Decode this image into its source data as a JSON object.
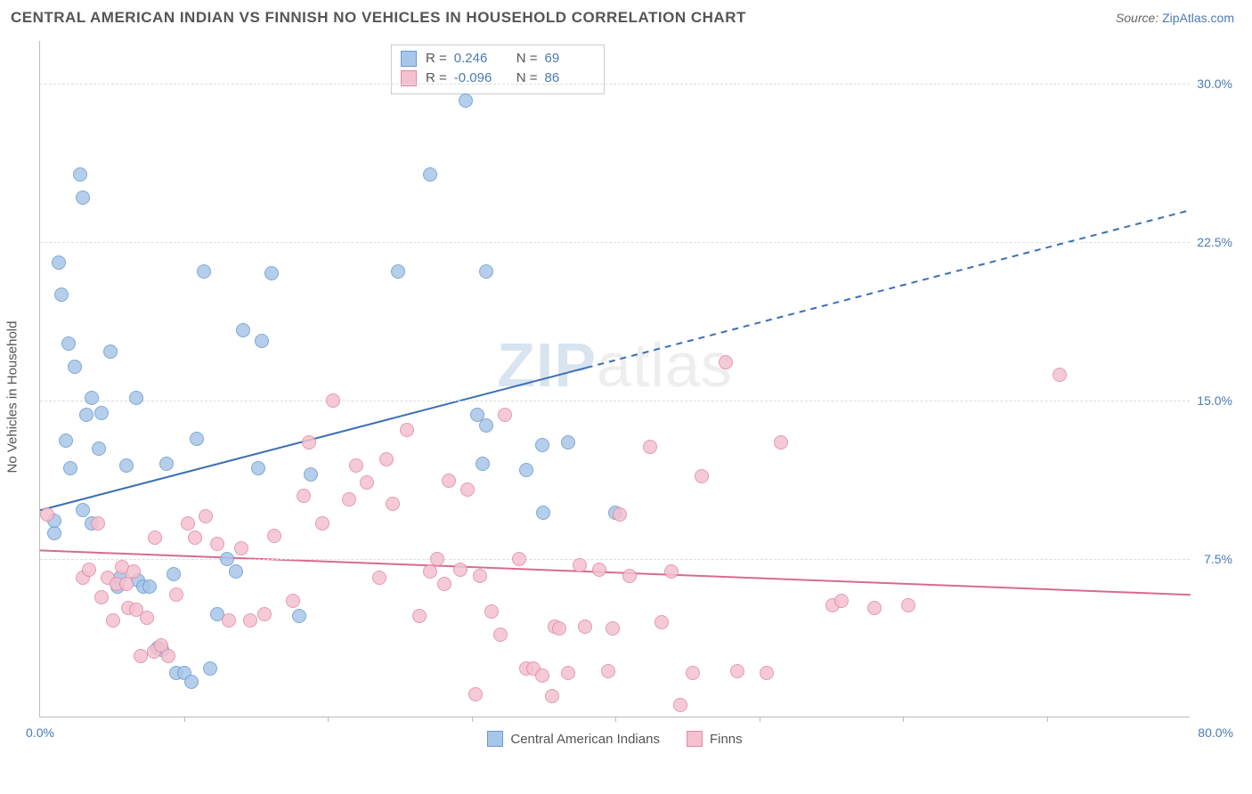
{
  "header": {
    "title": "CENTRAL AMERICAN INDIAN VS FINNISH NO VEHICLES IN HOUSEHOLD CORRELATION CHART",
    "source_label": "Source: ",
    "source_link": "ZipAtlas.com"
  },
  "chart": {
    "type": "scatter",
    "ylabel": "No Vehicles in Household",
    "xlim": [
      0,
      80
    ],
    "ylim": [
      0,
      32
    ],
    "x_tick_labels": [
      "0.0%",
      "80.0%"
    ],
    "x_tick_positions": [
      0,
      80
    ],
    "x_minor_ticks": [
      10,
      20,
      30,
      40,
      50,
      60,
      70
    ],
    "y_tick_labels": [
      "7.5%",
      "15.0%",
      "22.5%",
      "30.0%"
    ],
    "y_tick_positions": [
      7.5,
      15.0,
      22.5,
      30.0
    ],
    "background_color": "#ffffff",
    "grid_color": "#dddddd",
    "axis_color": "#bbbbbb",
    "tick_label_color": "#4a7ab8",
    "label_fontsize": 15,
    "tick_fontsize": 14,
    "title_fontsize": 17,
    "title_color": "#555555",
    "watermark": "ZIPatlas",
    "marker_radius": 8,
    "marker_border_width": 1,
    "marker_fill_opacity": 0.35,
    "series": [
      {
        "name": "Central American Indians",
        "fill": "#a8c6e8",
        "stroke": "#6a9bd1",
        "r_value": "0.246",
        "n_value": "69",
        "trend": {
          "x1": 0,
          "y1": 9.8,
          "x2": 80,
          "y2": 24.0,
          "solid_until_x": 38,
          "color": "#3b6fb5",
          "width": 2
        },
        "points": [
          [
            1,
            8.7
          ],
          [
            1,
            9.3
          ],
          [
            1.3,
            21.5
          ],
          [
            1.5,
            20.0
          ],
          [
            2.1,
            11.8
          ],
          [
            2.4,
            16.6
          ],
          [
            2.8,
            25.7
          ],
          [
            3.0,
            24.6
          ],
          [
            1.8,
            13.1
          ],
          [
            2.0,
            17.7
          ],
          [
            3.0,
            9.8
          ],
          [
            3.2,
            14.3
          ],
          [
            3.6,
            9.2
          ],
          [
            3.6,
            15.1
          ],
          [
            4.1,
            12.7
          ],
          [
            4.3,
            14.4
          ],
          [
            4.9,
            17.3
          ],
          [
            5.4,
            6.2
          ],
          [
            5.6,
            6.6
          ],
          [
            6.0,
            11.9
          ],
          [
            6.7,
            15.1
          ],
          [
            6.8,
            6.5
          ],
          [
            7.2,
            6.2
          ],
          [
            7.6,
            6.2
          ],
          [
            8.2,
            3.3
          ],
          [
            8.5,
            3.2
          ],
          [
            8.8,
            12.0
          ],
          [
            9.3,
            6.8
          ],
          [
            9.5,
            2.1
          ],
          [
            10.0,
            2.1
          ],
          [
            10.5,
            1.7
          ],
          [
            10.9,
            13.2
          ],
          [
            11.4,
            21.1
          ],
          [
            11.8,
            2.3
          ],
          [
            12.3,
            4.9
          ],
          [
            13.0,
            7.5
          ],
          [
            13.6,
            6.9
          ],
          [
            14.1,
            18.3
          ],
          [
            15.2,
            11.8
          ],
          [
            15.4,
            17.8
          ],
          [
            16.1,
            21.0
          ],
          [
            18.0,
            4.8
          ],
          [
            18.8,
            11.5
          ],
          [
            24.9,
            21.1
          ],
          [
            27.1,
            25.7
          ],
          [
            29.6,
            29.2
          ],
          [
            30.4,
            14.3
          ],
          [
            30.8,
            12.0
          ],
          [
            31.0,
            13.8
          ],
          [
            31.0,
            21.1
          ],
          [
            33.8,
            11.7
          ],
          [
            34.9,
            12.9
          ],
          [
            35.0,
            9.7
          ],
          [
            36.7,
            13.0
          ],
          [
            40.0,
            9.7
          ]
        ]
      },
      {
        "name": "Finns",
        "fill": "#f4c1cf",
        "stroke": "#e08aa3",
        "r_value": "-0.096",
        "n_value": "86",
        "trend": {
          "x1": 0,
          "y1": 7.9,
          "x2": 80,
          "y2": 5.8,
          "solid_until_x": 80,
          "color": "#d86a8e",
          "width": 2
        },
        "points": [
          [
            0.5,
            9.6
          ],
          [
            3.0,
            6.6
          ],
          [
            3.4,
            7.0
          ],
          [
            4.0,
            9.2
          ],
          [
            4.3,
            5.7
          ],
          [
            4.7,
            6.6
          ],
          [
            5.1,
            4.6
          ],
          [
            5.3,
            6.3
          ],
          [
            5.7,
            7.1
          ],
          [
            6.0,
            6.3
          ],
          [
            6.1,
            5.2
          ],
          [
            6.5,
            6.9
          ],
          [
            6.7,
            5.1
          ],
          [
            7.0,
            2.9
          ],
          [
            7.4,
            4.7
          ],
          [
            7.9,
            3.1
          ],
          [
            8.0,
            8.5
          ],
          [
            8.4,
            3.4
          ],
          [
            8.9,
            2.9
          ],
          [
            9.5,
            5.8
          ],
          [
            10.3,
            9.2
          ],
          [
            10.8,
            8.5
          ],
          [
            11.5,
            9.5
          ],
          [
            12.3,
            8.2
          ],
          [
            13.1,
            4.6
          ],
          [
            14.0,
            8.0
          ],
          [
            14.6,
            4.6
          ],
          [
            15.6,
            4.9
          ],
          [
            16.3,
            8.6
          ],
          [
            17.6,
            5.5
          ],
          [
            18.3,
            10.5
          ],
          [
            18.7,
            13.0
          ],
          [
            19.6,
            9.2
          ],
          [
            20.4,
            15.0
          ],
          [
            21.5,
            10.3
          ],
          [
            22.0,
            11.9
          ],
          [
            22.7,
            11.1
          ],
          [
            23.6,
            6.6
          ],
          [
            24.1,
            12.2
          ],
          [
            24.5,
            10.1
          ],
          [
            25.5,
            13.6
          ],
          [
            26.4,
            4.8
          ],
          [
            27.1,
            6.9
          ],
          [
            27.6,
            7.5
          ],
          [
            28.1,
            6.3
          ],
          [
            28.4,
            11.2
          ],
          [
            29.2,
            7.0
          ],
          [
            29.7,
            10.8
          ],
          [
            30.3,
            1.1
          ],
          [
            30.6,
            6.7
          ],
          [
            31.4,
            5.0
          ],
          [
            32.3,
            14.3
          ],
          [
            32.0,
            3.9
          ],
          [
            33.3,
            7.5
          ],
          [
            33.8,
            2.3
          ],
          [
            34.3,
            2.3
          ],
          [
            34.9,
            2.0
          ],
          [
            35.6,
            1.0
          ],
          [
            35.8,
            4.3
          ],
          [
            36.1,
            4.2
          ],
          [
            36.7,
            2.1
          ],
          [
            37.5,
            7.2
          ],
          [
            37.9,
            4.3
          ],
          [
            38.9,
            7.0
          ],
          [
            39.5,
            2.2
          ],
          [
            39.8,
            4.2
          ],
          [
            40.3,
            9.6
          ],
          [
            41.0,
            6.7
          ],
          [
            42.4,
            12.8
          ],
          [
            43.2,
            4.5
          ],
          [
            43.9,
            6.9
          ],
          [
            44.5,
            0.6
          ],
          [
            45.4,
            2.1
          ],
          [
            46.0,
            11.4
          ],
          [
            47.7,
            16.8
          ],
          [
            48.5,
            2.2
          ],
          [
            50.5,
            2.1
          ],
          [
            51.5,
            13.0
          ],
          [
            55.1,
            5.3
          ],
          [
            55.7,
            5.5
          ],
          [
            58.0,
            5.2
          ],
          [
            60.4,
            5.3
          ],
          [
            70.9,
            16.2
          ]
        ]
      }
    ]
  },
  "stats_box": {
    "r_label": "R =",
    "n_label": "N ="
  },
  "legend": {
    "label_a": "Central American Indians",
    "label_b": "Finns"
  }
}
